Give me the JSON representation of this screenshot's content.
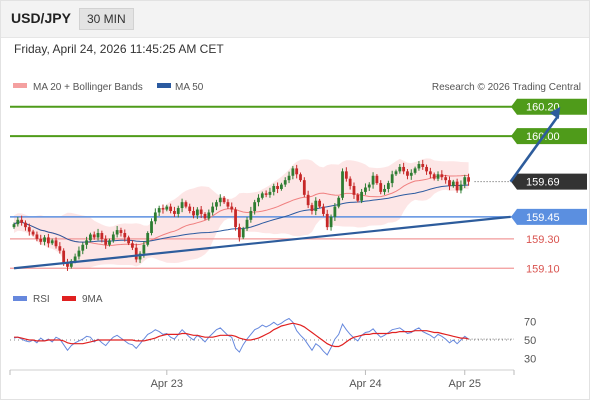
{
  "header": {
    "symbol": "USD/JPY",
    "timeframe": "30 MIN"
  },
  "datetime": "Friday, April 24, 2026 11:45:25 AM CET",
  "legend": {
    "ma20_label": "MA 20 + Bollinger Bands",
    "ma50_label": "MA 50",
    "copyright": "Research © 2026 Trading Central"
  },
  "rsi_legend": {
    "rsi_label": "RSI",
    "ma_label": "9MA"
  },
  "colors": {
    "resistance": "#4f9b1a",
    "support_blue": "#5b8fe0",
    "support_red": "#f29a9a",
    "ma20": "#f08080",
    "ma50": "#2b5aa0",
    "band_fill": "#fde3e3",
    "candle_up": "#2e7d32",
    "candle_down": "#c62828",
    "rsi_line": "#6688dd",
    "rsi_ma": "#e02020",
    "last_price_bg": "#333333",
    "trend": "#2d5c9c"
  },
  "chart_data": [
    {
      "type": "candlestick",
      "title": "USD/JPY 30 MIN",
      "x_tick_labels": [
        "Apr 23",
        "Apr 24",
        "Apr 25"
      ],
      "x_tick_index": [
        40,
        92,
        118
      ],
      "ylim": [
        159.02,
        160.28
      ],
      "levels": [
        {
          "value": 160.2,
          "label": "160.20",
          "kind": "resistance"
        },
        {
          "value": 160.0,
          "label": "160.00",
          "kind": "resistance"
        },
        {
          "value": 159.69,
          "label": "159.69",
          "kind": "last"
        },
        {
          "value": 159.45,
          "label": "159.45",
          "kind": "support-blue"
        },
        {
          "value": 159.3,
          "label": "159.30",
          "kind": "support-red"
        },
        {
          "value": 159.1,
          "label": "159.10",
          "kind": "support-red"
        }
      ],
      "trendline": {
        "start": [
          0,
          159.1
        ],
        "end": [
          130,
          159.45
        ]
      },
      "projection": {
        "start": [
          130,
          159.69
        ],
        "end": [
          143,
          160.2
        ]
      },
      "close": [
        159.4,
        159.43,
        159.41,
        159.38,
        159.35,
        159.33,
        159.3,
        159.28,
        159.31,
        159.27,
        159.29,
        159.25,
        159.22,
        159.14,
        159.11,
        159.15,
        159.18,
        159.22,
        159.26,
        159.29,
        159.33,
        159.31,
        159.34,
        159.3,
        159.26,
        159.29,
        159.33,
        159.36,
        159.34,
        159.31,
        159.27,
        159.24,
        159.16,
        159.2,
        159.26,
        159.34,
        159.42,
        159.48,
        159.51,
        159.5,
        159.52,
        159.49,
        159.47,
        159.51,
        159.55,
        159.52,
        159.49,
        159.46,
        159.5,
        159.47,
        159.44,
        159.48,
        159.52,
        159.55,
        159.58,
        159.55,
        159.52,
        159.5,
        159.38,
        159.31,
        159.37,
        159.43,
        159.49,
        159.55,
        159.58,
        159.61,
        159.6,
        159.62,
        159.66,
        159.64,
        159.67,
        159.7,
        159.73,
        159.78,
        159.74,
        159.7,
        159.6,
        159.53,
        159.49,
        159.56,
        159.52,
        159.47,
        159.38,
        159.45,
        159.52,
        159.58,
        159.76,
        159.71,
        159.66,
        159.6,
        159.56,
        159.62,
        159.65,
        159.67,
        159.73,
        159.68,
        159.62,
        159.64,
        159.68,
        159.74,
        159.76,
        159.79,
        159.76,
        159.73,
        159.75,
        159.78,
        159.81,
        159.79,
        159.76,
        159.74,
        159.71,
        159.74,
        159.72,
        159.7,
        159.66,
        159.69,
        159.63,
        159.67,
        159.72,
        159.69
      ]
    },
    {
      "type": "line",
      "title": "RSI",
      "ylim": [
        20,
        80
      ],
      "y_ticks": [
        70,
        50,
        30
      ],
      "series": [
        {
          "name": "RSI",
          "values": [
            52,
            53,
            51,
            49,
            48,
            50,
            47,
            52,
            49,
            51,
            48,
            53,
            51,
            45,
            39,
            44,
            47,
            49,
            51,
            54,
            53,
            48,
            51,
            47,
            44,
            49,
            53,
            55,
            52,
            49,
            46,
            45,
            41,
            46,
            51,
            56,
            58,
            61,
            59,
            56,
            57,
            53,
            51,
            56,
            61,
            57,
            53,
            50,
            55,
            52,
            48,
            53,
            57,
            61,
            63,
            59,
            55,
            53,
            41,
            37,
            45,
            51,
            56,
            61,
            63,
            66,
            64,
            66,
            69,
            66,
            68,
            71,
            73,
            69,
            60,
            55,
            51,
            45,
            39,
            46,
            43,
            38,
            34,
            42,
            51,
            56,
            67,
            61,
            56,
            52,
            49,
            55,
            58,
            59,
            62,
            57,
            53,
            55,
            58,
            61,
            62,
            63,
            60,
            57,
            58,
            61,
            63,
            59,
            57,
            55,
            52,
            56,
            54,
            51,
            47,
            50,
            46,
            50,
            54,
            51
          ]
        },
        {
          "name": "9MA",
          "values": [
            53,
            53,
            52,
            51,
            50,
            50,
            49,
            49,
            49,
            50,
            50,
            50,
            50,
            49,
            47,
            46,
            46,
            46,
            46,
            47,
            48,
            49,
            50,
            50,
            50,
            50,
            50,
            50,
            50,
            50,
            50,
            50,
            49,
            49,
            49,
            50,
            51,
            52,
            54,
            55,
            56,
            56,
            56,
            56,
            57,
            57,
            56,
            55,
            55,
            54,
            53,
            53,
            53,
            54,
            55,
            55,
            55,
            55,
            54,
            52,
            51,
            50,
            50,
            51,
            52,
            54,
            56,
            58,
            61,
            63,
            65,
            66,
            67,
            68,
            67,
            66,
            64,
            61,
            58,
            55,
            52,
            49,
            46,
            44,
            43,
            43,
            45,
            48,
            51,
            53,
            54,
            55,
            56,
            56,
            57,
            57,
            57,
            57,
            57,
            58,
            58,
            59,
            59,
            59,
            59,
            60,
            60,
            60,
            60,
            59,
            58,
            58,
            57,
            56,
            55,
            54,
            53,
            52,
            52,
            51
          ]
        }
      ]
    }
  ]
}
